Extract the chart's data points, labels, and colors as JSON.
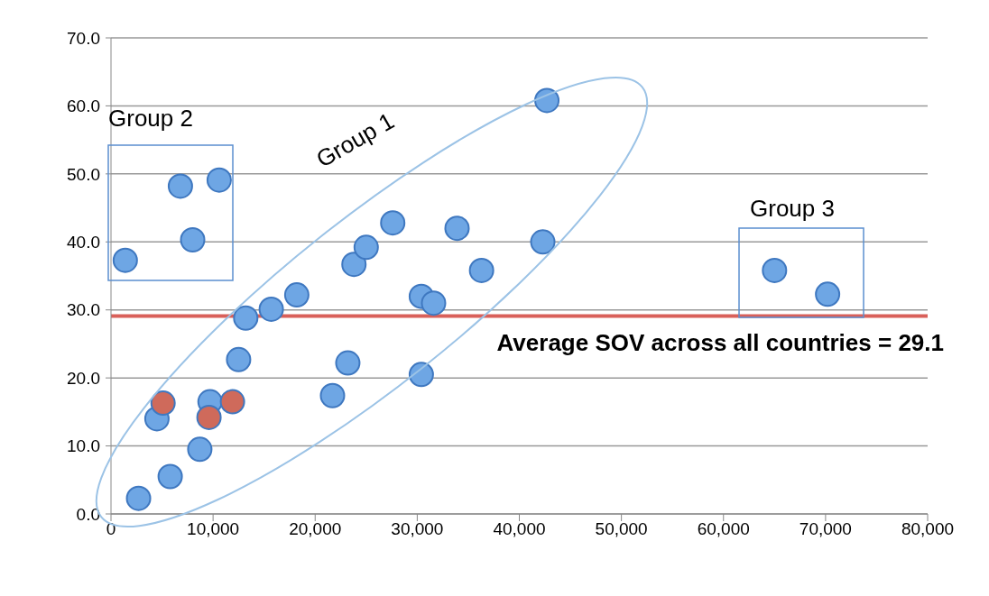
{
  "chart_data": {
    "type": "scatter",
    "xlim": [
      0,
      80000
    ],
    "xticks": [
      {
        "value": 0,
        "label": "0"
      },
      {
        "value": 10000,
        "label": "10,000"
      },
      {
        "value": 20000,
        "label": "20,000"
      },
      {
        "value": 30000,
        "label": "30,000"
      },
      {
        "value": 40000,
        "label": "40,000"
      },
      {
        "value": 50000,
        "label": "50,000"
      },
      {
        "value": 60000,
        "label": "60,000"
      },
      {
        "value": 70000,
        "label": "70,000"
      },
      {
        "value": 80000,
        "label": "80,000"
      }
    ],
    "ylim": [
      0,
      70
    ],
    "yticks": [
      {
        "value": 0,
        "label": "0.0"
      },
      {
        "value": 10,
        "label": "10.0"
      },
      {
        "value": 20,
        "label": "20.0"
      },
      {
        "value": 30,
        "label": "30.0"
      },
      {
        "value": 40,
        "label": "40.0"
      },
      {
        "value": 50,
        "label": "50.0"
      },
      {
        "value": 60,
        "label": "60.0"
      },
      {
        "value": 70,
        "label": "70.0"
      }
    ],
    "grid": "y",
    "legend": false,
    "marker": "circle",
    "series": [
      {
        "color": "#6ea6e4",
        "x": [
          2700,
          5800,
          8700,
          4500,
          9700,
          12500,
          13200,
          15700,
          18200,
          21700,
          23200,
          23800,
          25000,
          27600,
          30400,
          30400,
          31600,
          33900,
          36300,
          42300,
          42700,
          1400,
          6800,
          8000,
          10600,
          65000,
          70200
        ],
        "values": [
          2.3,
          5.5,
          9.5,
          14,
          16.5,
          22.7,
          28.8,
          30.1,
          32.2,
          17.4,
          22.2,
          36.7,
          39.2,
          42.8,
          20.5,
          32,
          31,
          42,
          35.8,
          40,
          60.8,
          37.3,
          48.2,
          40.3,
          49.1,
          35.8,
          32.3
        ]
      },
      {
        "color": "#cf6a5b",
        "x": [
          5100,
          9600,
          11900
        ],
        "values": [
          16.3,
          14.2,
          16.5
        ]
      }
    ],
    "ref_lines": [
      {
        "axis": "y",
        "value": 29.1,
        "label": "Average SOV across all countries = 29.1",
        "color": "#d9605a"
      }
    ],
    "annotations": [
      "Group 1",
      "Group 2",
      "Group 3"
    ]
  }
}
